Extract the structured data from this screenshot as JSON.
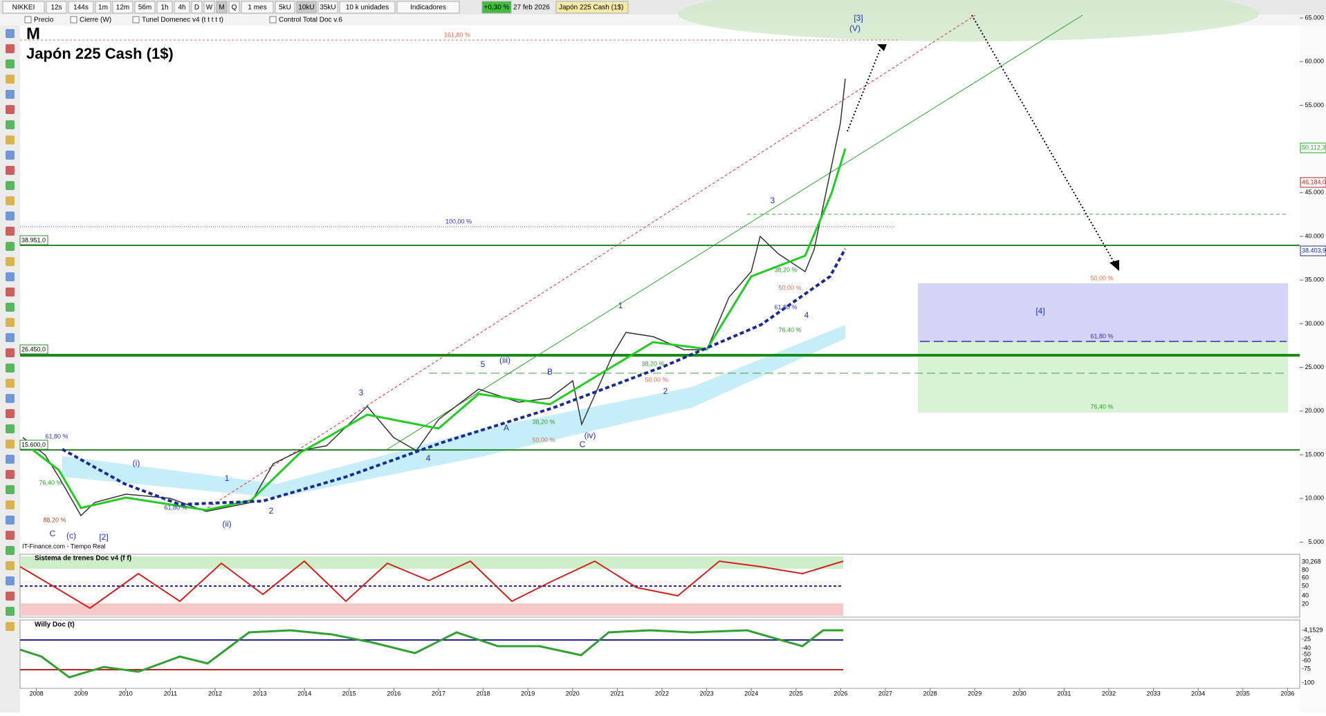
{
  "toolbar": {
    "symbol": "NIKKEI",
    "buttons": [
      "12s",
      "144s",
      "1m",
      "12m",
      "56m",
      "1h",
      "4h",
      "D",
      "W",
      "M",
      "Q"
    ],
    "period": "1 mes",
    "units": [
      "5kU",
      "10kU",
      "35kU"
    ],
    "unit_select": "10 k unidades",
    "indicators": "Indicadores",
    "change": "+0,30 %",
    "date": "27 feb 2026",
    "instrument": "Japón 225 Cash (1$)"
  },
  "legend_bar": [
    "Precio",
    "Cierre (W)",
    "Tunel Domenec v4 (t t t t t)",
    "Control Total Doc v.6"
  ],
  "chart": {
    "period": "M",
    "title": "Japón 225 Cash (1$)",
    "source": "IT-Finance.com - Tiempo Real",
    "y_axis_labels": [
      "65.000",
      "60.000",
      "55.000",
      "50.000",
      "45.000",
      "40.000",
      "35.000",
      "30.000",
      "25.000",
      "20.000",
      "15.000",
      "10.000",
      "5.000"
    ],
    "x_axis_labels": [
      "2008",
      "2009",
      "2010",
      "2011",
      "2012",
      "2013",
      "2014",
      "2015",
      "2016",
      "2017",
      "2018",
      "2019",
      "2020",
      "2021",
      "2022",
      "2023",
      "2024",
      "2025",
      "2026",
      "2027",
      "2028",
      "2029",
      "2030",
      "2031",
      "2032",
      "2033",
      "2034",
      "2035",
      "2036"
    ],
    "price_tags": [
      "50.112,3",
      "46.184,0",
      "38.403,9"
    ],
    "level_labels": [
      "38.951,0",
      "26.450,0",
      "15.600,0"
    ],
    "fib_labels": [
      "161,80 %",
      "100,00 %",
      "61,80 %",
      "76,40 %",
      "88,20 %",
      "61,80 %",
      "38,20 %",
      "50,00 %",
      "38,20 %",
      "50,00 %",
      "38,20 %",
      "50,00 %",
      "61,80 %",
      "76,40 %",
      "50,00 %",
      "61,80 %",
      "76,40 %"
    ],
    "wave_labels": [
      "[3]",
      "(V)",
      "3",
      "1",
      "5",
      "(iii)",
      "B",
      "3",
      "A",
      "(iv)",
      "C",
      "4",
      "2",
      "4",
      "[4]",
      "(i)",
      "1",
      "2",
      "(ii)",
      "C",
      "(c)",
      "[2]"
    ]
  },
  "panel1": {
    "title": "Sistema de trenes Doc v4 (f f)",
    "axis_labels": [
      "30,268",
      "80",
      "60",
      "50",
      "40",
      "20"
    ]
  },
  "panel2": {
    "title": "Willy Doc (t)",
    "axis_labels": [
      "-4,1529",
      "-25",
      "-40",
      "-50",
      "-60",
      "-75",
      "-100"
    ]
  }
}
